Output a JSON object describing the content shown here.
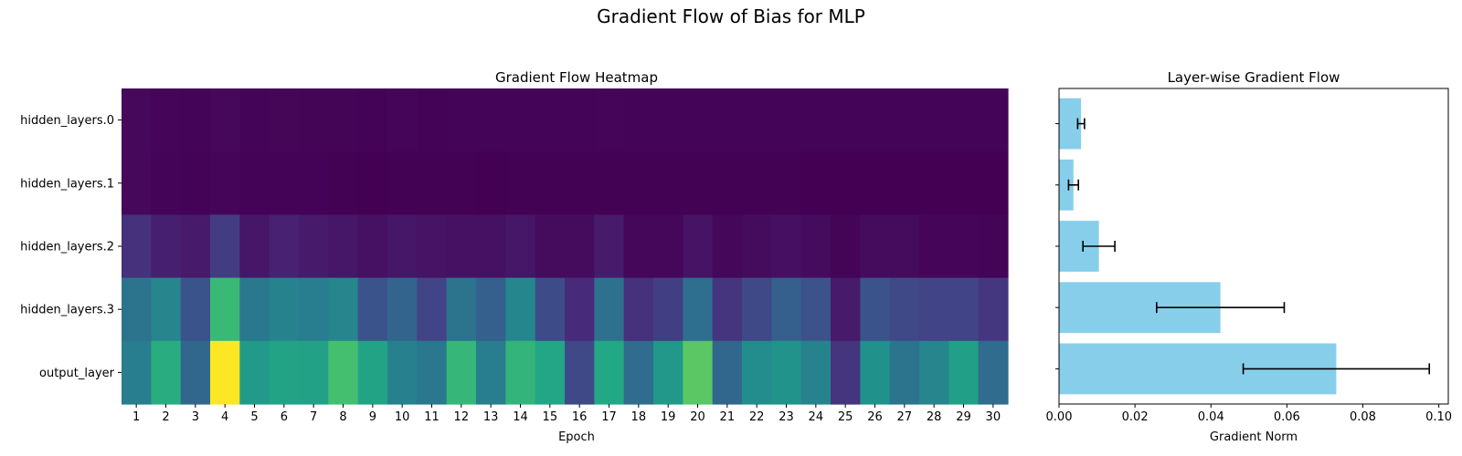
{
  "figure": {
    "suptitle": "Gradient Flow of Bias for MLP"
  },
  "chart_data": [
    {
      "type": "heatmap",
      "title": "Gradient Flow Heatmap",
      "xlabel": "Epoch",
      "ylabel": "",
      "colormap": "viridis",
      "x": [
        1,
        2,
        3,
        4,
        5,
        6,
        7,
        8,
        9,
        10,
        11,
        12,
        13,
        14,
        15,
        16,
        17,
        18,
        19,
        20,
        21,
        22,
        23,
        24,
        25,
        26,
        27,
        28,
        29,
        30
      ],
      "rows": [
        "hidden_layers.0",
        "hidden_layers.1",
        "hidden_layers.2",
        "hidden_layers.3",
        "output_layer"
      ],
      "vmin": 0,
      "vmax": 1,
      "values": [
        [
          0.02,
          0.015,
          0.012,
          0.02,
          0.012,
          0.013,
          0.01,
          0.01,
          0.006,
          0.014,
          0.006,
          0.012,
          0.012,
          0.012,
          0.012,
          0.012,
          0.014,
          0.012,
          0.012,
          0.012,
          0.012,
          0.012,
          0.012,
          0.012,
          0.012,
          0.012,
          0.012,
          0.012,
          0.012,
          0.012
        ],
        [
          0.02,
          0.008,
          0.005,
          0.015,
          0.005,
          0.005,
          0.005,
          0.004,
          0.001,
          0.004,
          0.002,
          0.003,
          0.001,
          0.002,
          0.002,
          0.002,
          0.002,
          0.002,
          0.002,
          0.002,
          0.002,
          0.002,
          0.002,
          0.001,
          0.001,
          0.001,
          0.001,
          0.001,
          0.001,
          0.001
        ],
        [
          0.14,
          0.085,
          0.07,
          0.175,
          0.06,
          0.09,
          0.07,
          0.06,
          0.045,
          0.06,
          0.05,
          0.045,
          0.045,
          0.06,
          0.03,
          0.03,
          0.07,
          0.018,
          0.018,
          0.05,
          0.018,
          0.03,
          0.04,
          0.03,
          0.01,
          0.03,
          0.03,
          0.015,
          0.015,
          0.01
        ],
        [
          0.38,
          0.45,
          0.26,
          0.67,
          0.4,
          0.44,
          0.42,
          0.45,
          0.26,
          0.32,
          0.2,
          0.38,
          0.3,
          0.46,
          0.23,
          0.12,
          0.37,
          0.14,
          0.18,
          0.36,
          0.15,
          0.22,
          0.3,
          0.25,
          0.07,
          0.26,
          0.22,
          0.2,
          0.2,
          0.16
        ],
        [
          0.42,
          0.62,
          0.33,
          1.0,
          0.54,
          0.58,
          0.57,
          0.7,
          0.58,
          0.43,
          0.4,
          0.66,
          0.42,
          0.65,
          0.59,
          0.22,
          0.6,
          0.35,
          0.53,
          0.74,
          0.33,
          0.48,
          0.51,
          0.44,
          0.15,
          0.5,
          0.38,
          0.45,
          0.56,
          0.35
        ]
      ]
    },
    {
      "type": "bar",
      "orientation": "horizontal",
      "title": "Layer-wise Gradient Flow",
      "xlabel": "Gradient Norm",
      "ylabel": "",
      "color": "#87ceeb",
      "categories": [
        "hidden_layers.0",
        "hidden_layers.1",
        "hidden_layers.2",
        "hidden_layers.3",
        "output_layer"
      ],
      "values": [
        0.0058,
        0.0038,
        0.0105,
        0.0425,
        0.073
      ],
      "errors": [
        0.0009,
        0.0013,
        0.0042,
        0.0168,
        0.0245
      ],
      "xlim": [
        0,
        0.1025
      ],
      "xticks": [
        "0.00",
        "0.02",
        "0.04",
        "0.06",
        "0.08",
        "0.10"
      ],
      "xtick_values": [
        0,
        0.02,
        0.04,
        0.06,
        0.08,
        0.1
      ]
    }
  ]
}
